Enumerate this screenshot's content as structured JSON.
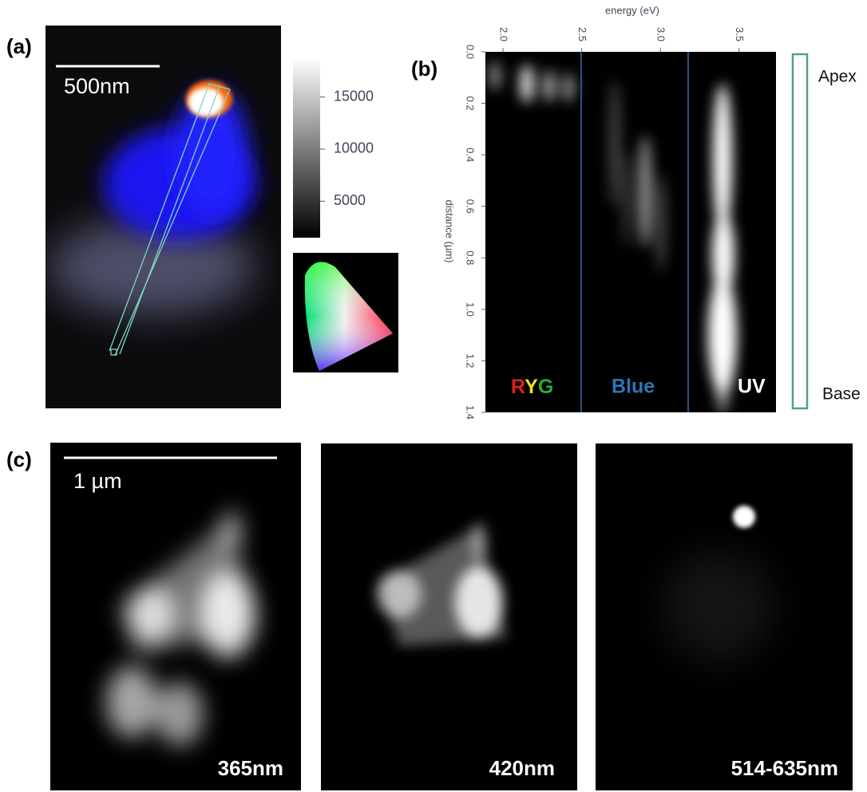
{
  "panel_a": {
    "label": "(a)",
    "scale_bar": "500nm",
    "colorbar": {
      "lim": [
        1500,
        18800
      ],
      "ticks": [
        5000,
        10000,
        15000
      ]
    }
  },
  "panel_b": {
    "label": "(b)",
    "energy_axis": {
      "title": "energy (eV)",
      "lim": [
        1.888,
        3.735
      ],
      "ticks": [
        {
          "value": 2,
          "label": "2.0"
        },
        {
          "value": 2.5,
          "label": "2.5"
        },
        {
          "value": 3,
          "label": "3.0"
        },
        {
          "value": 3.5,
          "label": "3.5"
        }
      ]
    },
    "distance_axis": {
      "title": "distance (µm)",
      "lim": [
        0,
        1.4
      ],
      "ticks": [
        {
          "value": 0,
          "label": "0.0"
        },
        0.2,
        0.4,
        0.6,
        0.8,
        {
          "value": 1,
          "label": "1.0"
        },
        1.2,
        1.4
      ]
    },
    "regions": {
      "ryg": [
        "R",
        "Y",
        "G"
      ],
      "blue": "Blue",
      "uv": "UV"
    },
    "apex": "Apex",
    "base": "Base"
  },
  "panel_c": {
    "label": "(c)",
    "scale_bar": "1 µm",
    "images": [
      "365nm",
      "420nm",
      "514-635nm"
    ]
  }
}
